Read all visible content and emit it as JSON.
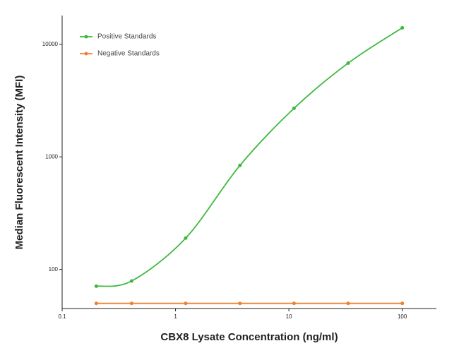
{
  "chart_data": {
    "type": "line",
    "x_label": "CBX8 Lysate Concentration (ng/ml)",
    "y_label": "Median  Fluorescent Intensity  (MFI)",
    "x": [
      0.2,
      0.41,
      1.23,
      3.7,
      11.1,
      33.3,
      100
    ],
    "series": [
      {
        "name": "Positive Standards",
        "color": "#3db83d",
        "values": [
          71,
          79,
          190,
          840,
          2700,
          6800,
          14000
        ]
      },
      {
        "name": "Negative Standards",
        "color": "#f08030",
        "values": [
          50,
          50,
          50,
          50,
          50,
          50,
          50
        ]
      }
    ],
    "xscale": "log",
    "yscale": "log",
    "xlim": [
      0.1,
      200
    ],
    "ylim": [
      45,
      18000
    ],
    "xticks": [
      0.1,
      1,
      10,
      100
    ],
    "yticks": [
      100,
      1000,
      10000
    ],
    "legend": "upper left",
    "grid": false
  }
}
